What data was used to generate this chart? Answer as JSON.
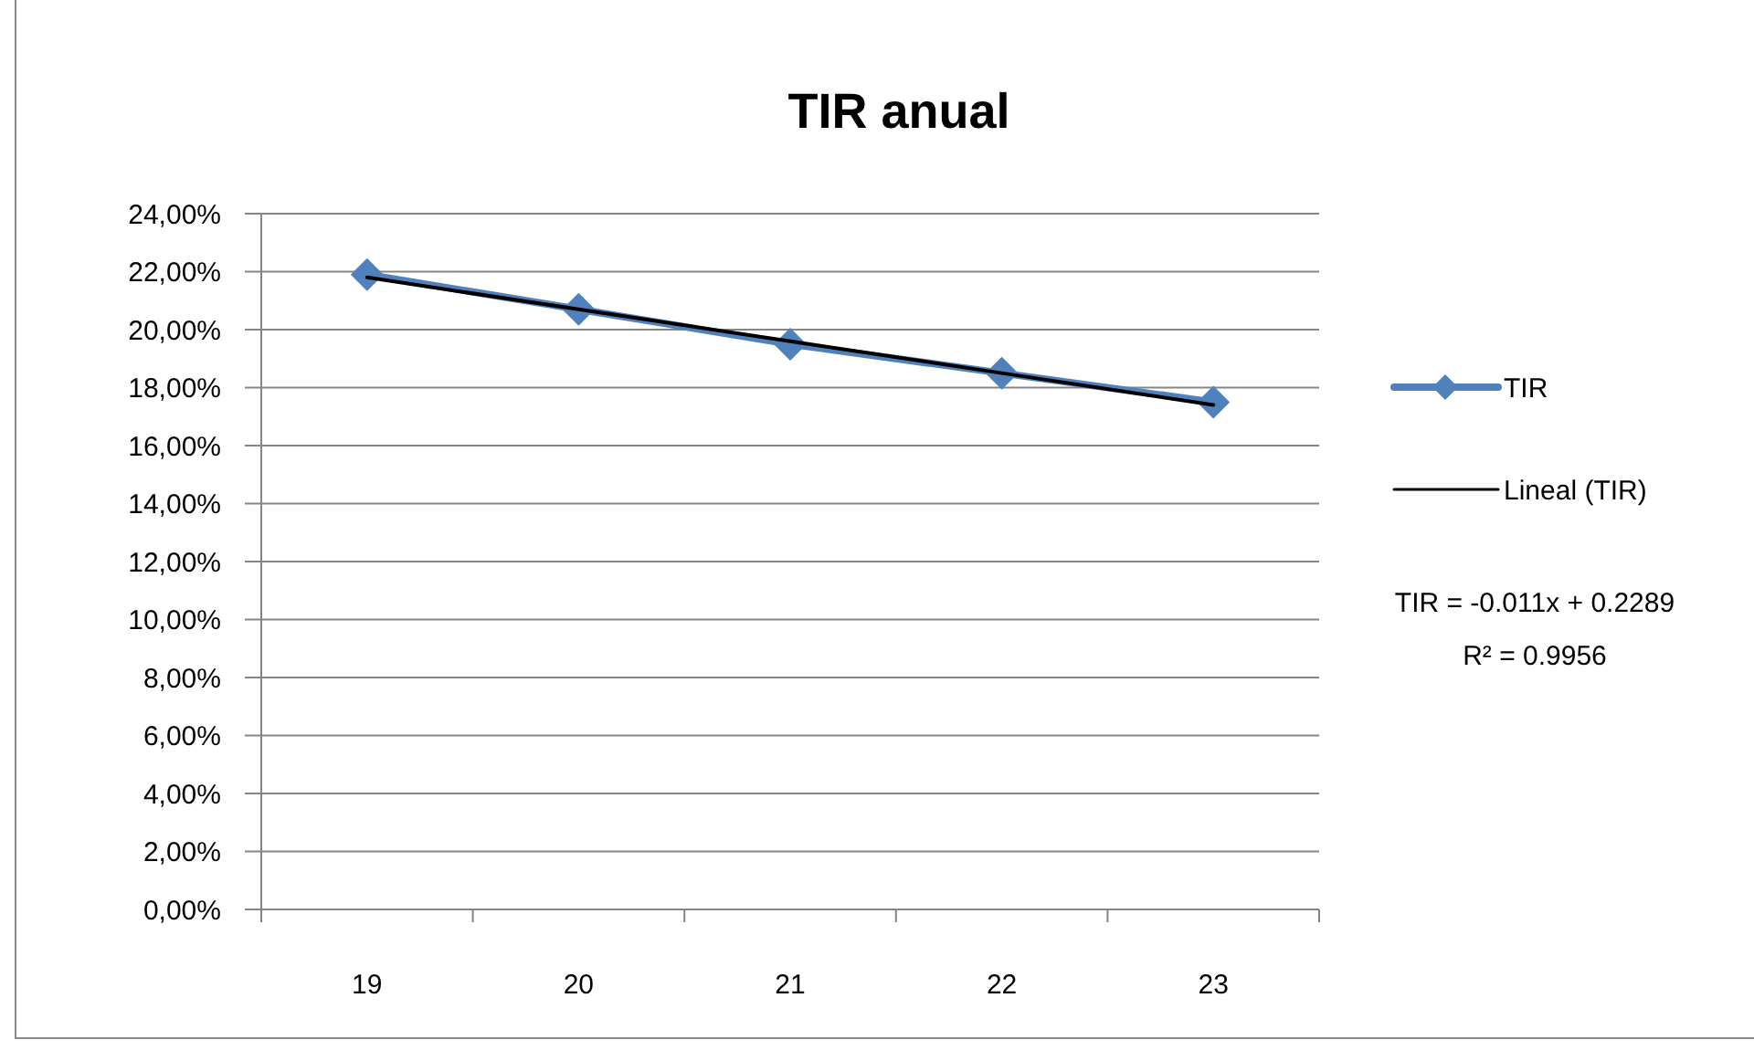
{
  "chart_data": {
    "type": "line",
    "title": "TIR anual",
    "categories": [
      "19",
      "20",
      "21",
      "22",
      "23"
    ],
    "series": [
      {
        "name": "TIR",
        "color": "#4f81bd",
        "values": [
          21.9,
          20.7,
          19.5,
          18.5,
          17.5
        ]
      },
      {
        "name": "Lineal (TIR)",
        "type": "line",
        "color": "#000000",
        "marker": "none",
        "values": [
          21.8,
          20.7,
          19.6,
          18.5,
          17.4
        ]
      }
    ],
    "ylim": [
      0,
      24
    ],
    "yticks": [
      {
        "value": 0,
        "label": "0,00%"
      },
      {
        "value": 2,
        "label": "2,00%"
      },
      {
        "value": 4,
        "label": "4,00%"
      },
      {
        "value": 6,
        "label": "6,00%"
      },
      {
        "value": 8,
        "label": "8,00%"
      },
      {
        "value": 10,
        "label": "10,00%"
      },
      {
        "value": 12,
        "label": "12,00%"
      },
      {
        "value": 14,
        "label": "14,00%"
      },
      {
        "value": 16,
        "label": "16,00%"
      },
      {
        "value": 18,
        "label": "18,00%"
      },
      {
        "value": 20,
        "label": "20,00%"
      },
      {
        "value": 22,
        "label": "22,00%"
      },
      {
        "value": 24,
        "label": "24,00%"
      }
    ],
    "grid": "y",
    "legend": "right",
    "marker": "diamond",
    "line_style": "solid",
    "annotations": [
      "TIR = -0.011x + 0.2289",
      "R² = 0.9956"
    ]
  }
}
